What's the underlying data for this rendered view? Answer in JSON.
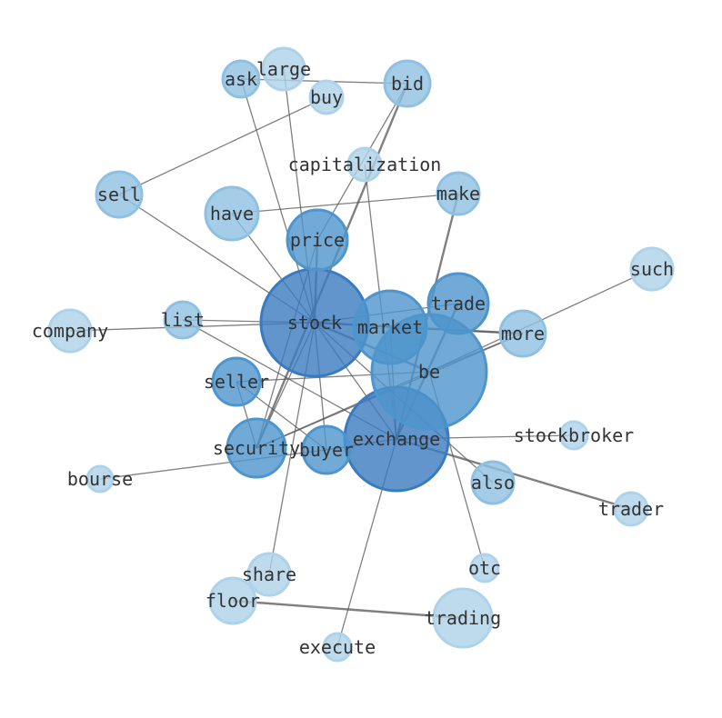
{
  "nodes": [
    "stock",
    "exchange",
    "be",
    "market",
    "price",
    "trade",
    "security",
    "buyer",
    "seller",
    "have",
    "more",
    "also",
    "make",
    "sell",
    "bid",
    "ask",
    "list",
    "large",
    "buy",
    "capitalization",
    "such",
    "company",
    "stockbroker",
    "trader",
    "bourse",
    "share",
    "otc",
    "floor",
    "trading",
    "execute"
  ],
  "edges": [
    [
      "ask",
      "bid"
    ],
    [
      "ask",
      "stock"
    ],
    [
      "large",
      "stock"
    ],
    [
      "buy",
      "sell"
    ],
    [
      "bid",
      "security"
    ],
    [
      "bid",
      "price"
    ],
    [
      "capitalization",
      "exchange"
    ],
    [
      "have",
      "make"
    ],
    [
      "have",
      "stock"
    ],
    [
      "sell",
      "stock"
    ],
    [
      "price",
      "stock"
    ],
    [
      "price",
      "security"
    ],
    [
      "stock",
      "list"
    ],
    [
      "stock",
      "company"
    ],
    [
      "stock",
      "market"
    ],
    [
      "stock",
      "be"
    ],
    [
      "stock",
      "more"
    ],
    [
      "stock",
      "exchange"
    ],
    [
      "stock",
      "buyer"
    ],
    [
      "stock",
      "share"
    ],
    [
      "stock",
      "security"
    ],
    [
      "stock",
      "also"
    ],
    [
      "make",
      "exchange"
    ],
    [
      "trade",
      "exchange"
    ],
    [
      "trade",
      "stock"
    ],
    [
      "more",
      "be"
    ],
    [
      "such",
      "be"
    ],
    [
      "be",
      "seller"
    ],
    [
      "be",
      "otc"
    ],
    [
      "be",
      "security"
    ],
    [
      "exchange",
      "stockbroker"
    ],
    [
      "exchange",
      "trader"
    ],
    [
      "exchange",
      "buyer"
    ],
    [
      "exchange",
      "execute"
    ],
    [
      "list",
      "exchange"
    ],
    [
      "seller",
      "buyer"
    ],
    [
      "seller",
      "security"
    ],
    [
      "bourse",
      "buyer"
    ],
    [
      "floor",
      "trading"
    ],
    [
      "market",
      "exchange"
    ],
    [
      "market",
      "more"
    ],
    [
      "more",
      "security"
    ]
  ],
  "colors": {
    "dark": "#3a7bbf",
    "mid": "#4d95cc",
    "light": "#8fc0e2",
    "pale": "#aed2ea",
    "edge": "#555555"
  }
}
